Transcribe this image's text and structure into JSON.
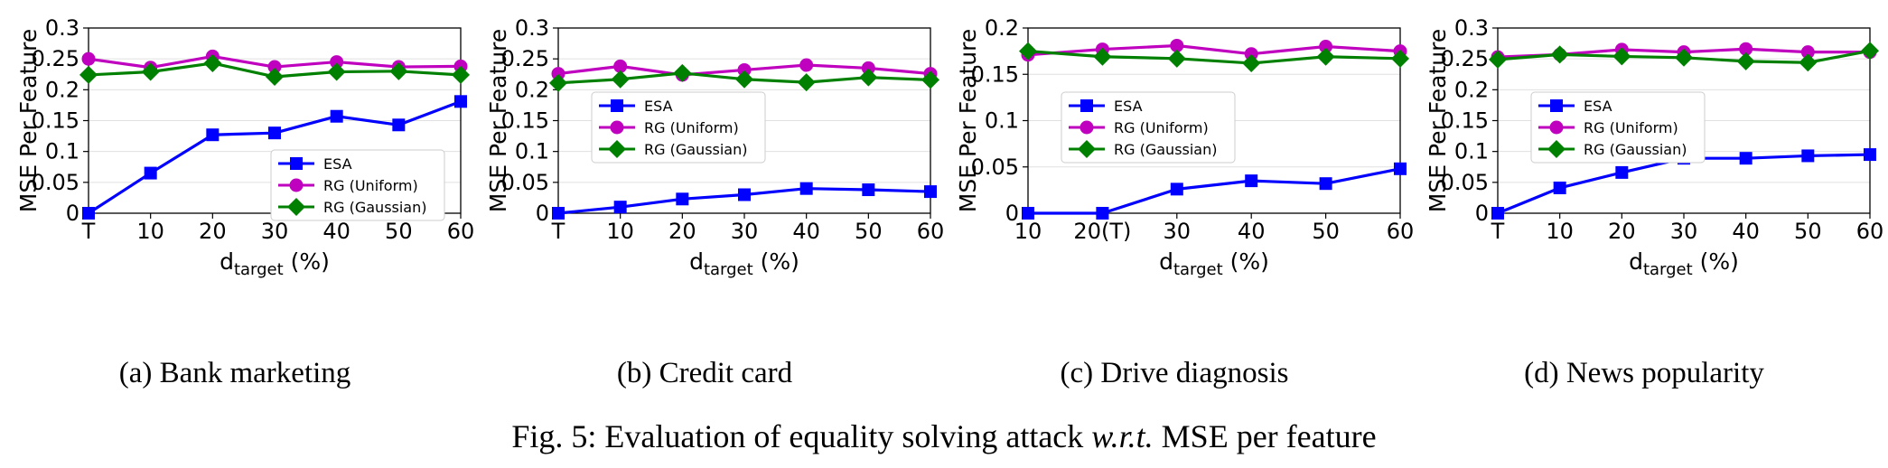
{
  "caption": {
    "prefix": "Fig. 5: Evaluation of equality solving attack ",
    "italic": "w.r.t.",
    "suffix": " MSE per feature"
  },
  "chart_data": [
    {
      "type": "line",
      "subcaption": "(a) Bank marketing",
      "xlabel_main": "d",
      "xlabel_sub": "target",
      "xlabel_unit": " (%)",
      "ylabel": "MSE Per Feature",
      "xticklabels": [
        "T",
        "10",
        "20",
        "30",
        "40",
        "50",
        "60"
      ],
      "ylim": [
        0,
        0.3
      ],
      "yticks": [
        "0",
        "0.05",
        "0.1",
        "0.15",
        "0.2",
        "0.25",
        "0.3"
      ],
      "grid": true,
      "legend": "lower-right",
      "series": [
        {
          "name": "ESA",
          "color": "#0000ff",
          "marker": "square",
          "values": [
            0.0,
            0.065,
            0.127,
            0.13,
            0.157,
            0.143,
            0.181
          ]
        },
        {
          "name": "RG (Uniform)",
          "color": "#bf00bf",
          "marker": "circle",
          "values": [
            0.25,
            0.236,
            0.254,
            0.237,
            0.245,
            0.237,
            0.238
          ]
        },
        {
          "name": "RG (Gaussian)",
          "color": "#008000",
          "marker": "diamond",
          "values": [
            0.224,
            0.229,
            0.243,
            0.221,
            0.229,
            0.23,
            0.224
          ]
        }
      ]
    },
    {
      "type": "line",
      "subcaption": "(b) Credit card",
      "xlabel_main": "d",
      "xlabel_sub": "target",
      "xlabel_unit": " (%)",
      "ylabel": "MSE Per Feature",
      "xticklabels": [
        "T",
        "10",
        "20",
        "30",
        "40",
        "50",
        "60"
      ],
      "ylim": [
        0,
        0.3
      ],
      "yticks": [
        "0",
        "0.05",
        "0.1",
        "0.15",
        "0.2",
        "0.25",
        "0.3"
      ],
      "grid": true,
      "legend": "center-left",
      "series": [
        {
          "name": "ESA",
          "color": "#0000ff",
          "marker": "square",
          "values": [
            0.0,
            0.01,
            0.023,
            0.03,
            0.04,
            0.038,
            0.035
          ]
        },
        {
          "name": "RG (Uniform)",
          "color": "#bf00bf",
          "marker": "circle",
          "values": [
            0.226,
            0.238,
            0.224,
            0.232,
            0.24,
            0.235,
            0.226
          ]
        },
        {
          "name": "RG (Gaussian)",
          "color": "#008000",
          "marker": "diamond",
          "values": [
            0.211,
            0.217,
            0.227,
            0.217,
            0.212,
            0.22,
            0.216
          ]
        }
      ]
    },
    {
      "type": "line",
      "subcaption": "(c) Drive diagnosis",
      "xlabel_main": "d",
      "xlabel_sub": "target",
      "xlabel_unit": " (%)",
      "ylabel": "MSE Per Feature",
      "xticklabels": [
        "10",
        "20(T)",
        "30",
        "40",
        "50",
        "60"
      ],
      "ylim": [
        0,
        0.2
      ],
      "yticks": [
        "0",
        "0.05",
        "0.1",
        "0.15",
        "0.2"
      ],
      "grid": true,
      "legend": "center-left",
      "series": [
        {
          "name": "ESA",
          "color": "#0000ff",
          "marker": "square",
          "values": [
            0.0,
            0.0,
            0.026,
            0.035,
            0.032,
            0.048
          ]
        },
        {
          "name": "RG (Uniform)",
          "color": "#bf00bf",
          "marker": "circle",
          "values": [
            0.171,
            0.177,
            0.181,
            0.172,
            0.18,
            0.175
          ]
        },
        {
          "name": "RG (Gaussian)",
          "color": "#008000",
          "marker": "diamond",
          "values": [
            0.175,
            0.169,
            0.167,
            0.162,
            0.169,
            0.167
          ]
        }
      ]
    },
    {
      "type": "line",
      "subcaption": "(d) News popularity",
      "xlabel_main": "d",
      "xlabel_sub": "target",
      "xlabel_unit": " (%)",
      "ylabel": "MSE Per Feature",
      "xticklabels": [
        "T",
        "10",
        "20",
        "30",
        "40",
        "50",
        "60"
      ],
      "ylim": [
        0,
        0.3
      ],
      "yticks": [
        "0",
        "0.05",
        "0.1",
        "0.15",
        "0.2",
        "0.25",
        "0.3"
      ],
      "grid": true,
      "legend": "center-left",
      "series": [
        {
          "name": "ESA",
          "color": "#0000ff",
          "marker": "square",
          "values": [
            0.0,
            0.041,
            0.066,
            0.089,
            0.089,
            0.093,
            0.095
          ]
        },
        {
          "name": "RG (Uniform)",
          "color": "#bf00bf",
          "marker": "circle",
          "values": [
            0.253,
            0.257,
            0.265,
            0.261,
            0.266,
            0.261,
            0.261
          ]
        },
        {
          "name": "RG (Gaussian)",
          "color": "#008000",
          "marker": "diamond",
          "values": [
            0.249,
            0.257,
            0.254,
            0.252,
            0.246,
            0.244,
            0.263
          ]
        }
      ]
    }
  ]
}
